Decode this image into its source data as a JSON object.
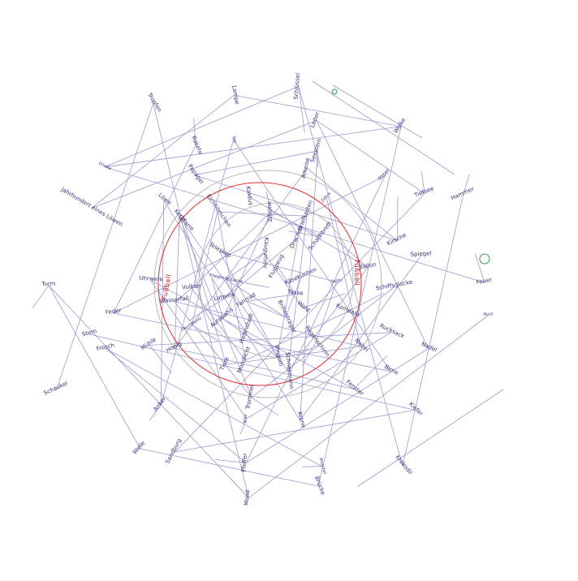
{
  "diagram": {
    "accent_colors": {
      "edge": "#9a9ad0",
      "text": "#33337a",
      "ring": "#e03030",
      "node": "#3a9a4a"
    },
    "ring_labels": [
      "Fußball",
      "Fußball"
    ],
    "labels": [
      "Tasse",
      "Fahrrad",
      "Flugzeug",
      "Brillenträger",
      "Fliegende Fische",
      "Käsekuchen",
      "Hafenstadt",
      "Kaugummi",
      "Wald",
      "Laterne",
      "Drachen",
      "Pinguin",
      "Teleskop",
      "Sushi",
      "Autobahn",
      "Zitrone",
      "Regenschirm",
      "Vulkan",
      "Schachbrett",
      "Mondlicht",
      "Eichhörnchen",
      "Kompass",
      "Leuchtturm",
      "Briefkasten",
      "Schneemann",
      "Gitarre",
      "Ballon",
      "Tinte",
      "Kaktus",
      "Nebel",
      "Wasserfall",
      "Zebra",
      "Trommel",
      "Kerze",
      "Schiffsglocke",
      "Honig",
      "Ameise",
      "Fenster",
      "Uhrwerk",
      "Kirsche",
      "Blitz",
      "Papagei",
      "Rucksack",
      "Mühle",
      "Seestern",
      "Krone",
      "Löwe",
      "Spiegel",
      "Anker",
      "Igel",
      "Birne",
      "Feder",
      "Insel",
      "Pfeffer",
      "Rakete",
      "Nadel",
      "Frosch",
      "Leiter",
      "Muschel",
      "Jahrhundert eines Löwen",
      "Tiefsee",
      "Sandburg",
      "Lampe",
      "Kiefer",
      "Stern",
      "Wolke",
      "Brücke",
      "Glocke",
      "Feuer",
      "Welle",
      "Schlüssel",
      "Krokodil",
      "Turm",
      "Hammer",
      "Mond",
      "Tropfen",
      "Nuss",
      "Schaukel"
    ]
  }
}
